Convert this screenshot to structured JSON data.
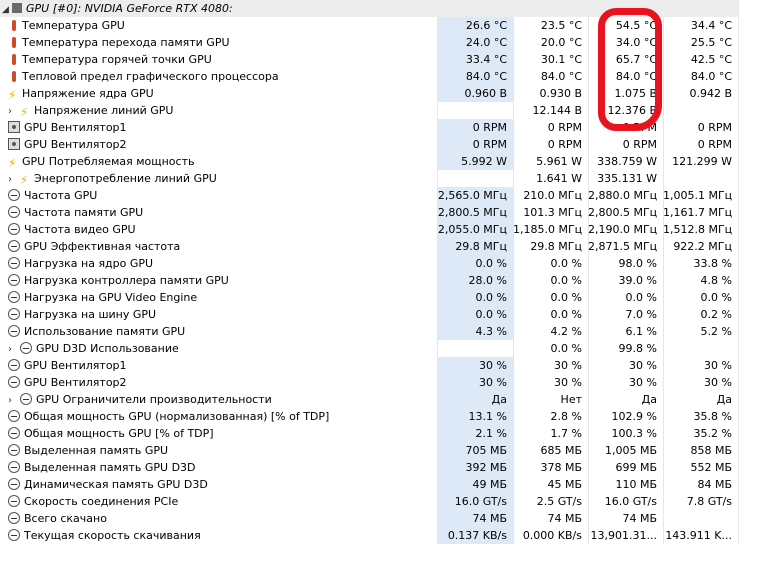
{
  "device_header": {
    "label": "GPU [#0]: NVIDIA GeForce RTX 4080:"
  },
  "sensors": [
    {
      "icon": "thermometer-icon",
      "label": "Температура GPU",
      "values": [
        "26.6 °C",
        "23.5 °C",
        "54.5 °C",
        "34.4 °C"
      ]
    },
    {
      "icon": "thermometer-icon",
      "label": "Температура перехода памяти GPU",
      "values": [
        "24.0 °C",
        "20.0 °C",
        "34.0 °C",
        "25.5 °C"
      ]
    },
    {
      "icon": "thermometer-icon",
      "label": "Температура горячей точки GPU",
      "values": [
        "33.4 °C",
        "30.1 °C",
        "65.7 °C",
        "42.5 °C"
      ]
    },
    {
      "icon": "thermometer-icon",
      "label": "Тепловой предел графического процессора",
      "values": [
        "84.0 °C",
        "84.0 °C",
        "84.0 °C",
        "84.0 °C"
      ]
    },
    {
      "icon": "lightning-icon",
      "label": "Напряжение ядра GPU",
      "values": [
        "0.960 В",
        "0.930 В",
        "1.075 В",
        "0.942 В"
      ]
    },
    {
      "icon": "lightning-icon",
      "label": "Напряжение линий GPU",
      "expandable": true,
      "values": [
        "",
        "12.144 В",
        "12.376 В",
        ""
      ]
    },
    {
      "icon": "fan-icon",
      "label": "GPU Вентилятор1",
      "values": [
        "0 RPM",
        "0 RPM",
        "0 RPM",
        "0 RPM"
      ]
    },
    {
      "icon": "fan-icon",
      "label": "GPU Вентилятор2",
      "values": [
        "0 RPM",
        "0 RPM",
        "0 RPM",
        "0 RPM"
      ]
    },
    {
      "icon": "lightning-icon",
      "label": "GPU Потребляемая мощность",
      "values": [
        "5.992 W",
        "5.961 W",
        "338.759 W",
        "121.299 W"
      ]
    },
    {
      "icon": "lightning-icon",
      "label": "Энергопотребление линий GPU",
      "expandable": true,
      "values": [
        "",
        "1.641 W",
        "335.131 W",
        ""
      ]
    },
    {
      "icon": "gauge-icon",
      "label": "Частота GPU",
      "values": [
        "2,565.0 МГц",
        "210.0 МГц",
        "2,880.0 МГц",
        "1,005.1 МГц"
      ]
    },
    {
      "icon": "gauge-icon",
      "label": "Частота памяти GPU",
      "values": [
        "2,800.5 МГц",
        "101.3 МГц",
        "2,800.5 МГц",
        "1,161.7 МГц"
      ]
    },
    {
      "icon": "gauge-icon",
      "label": "Частота видео GPU",
      "values": [
        "2,055.0 МГц",
        "1,185.0 МГц",
        "2,190.0 МГц",
        "1,512.8 МГц"
      ]
    },
    {
      "icon": "gauge-icon",
      "label": "GPU Эффективная частота",
      "values": [
        "29.8 МГц",
        "29.8 МГц",
        "2,871.5 МГц",
        "922.2 МГц"
      ]
    },
    {
      "icon": "gauge-icon",
      "label": "Нагрузка на ядро GPU",
      "values": [
        "0.0 %",
        "0.0 %",
        "98.0 %",
        "33.8 %"
      ]
    },
    {
      "icon": "gauge-icon",
      "label": "Нагрузка контроллера памяти GPU",
      "values": [
        "28.0 %",
        "0.0 %",
        "39.0 %",
        "4.8 %"
      ]
    },
    {
      "icon": "gauge-icon",
      "label": "Нагрузка на GPU Video Engine",
      "values": [
        "0.0 %",
        "0.0 %",
        "0.0 %",
        "0.0 %"
      ]
    },
    {
      "icon": "gauge-icon",
      "label": "Нагрузка на шину GPU",
      "values": [
        "0.0 %",
        "0.0 %",
        "7.0 %",
        "0.2 %"
      ]
    },
    {
      "icon": "gauge-icon",
      "label": "Использование памяти GPU",
      "values": [
        "4.3 %",
        "4.2 %",
        "6.1 %",
        "5.2 %"
      ]
    },
    {
      "icon": "gauge-icon",
      "label": "GPU D3D Использование",
      "expandable": true,
      "values": [
        "",
        "0.0 %",
        "99.8 %",
        ""
      ]
    },
    {
      "icon": "gauge-icon",
      "label": "GPU Вентилятор1",
      "values": [
        "30 %",
        "30 %",
        "30 %",
        "30 %"
      ]
    },
    {
      "icon": "gauge-icon",
      "label": "GPU Вентилятор2",
      "values": [
        "30 %",
        "30 %",
        "30 %",
        "30 %"
      ]
    },
    {
      "icon": "gauge-icon",
      "label": "GPU Ограничители производительности",
      "expandable": true,
      "values": [
        "Да",
        "Нет",
        "Да",
        "Да"
      ]
    },
    {
      "icon": "gauge-icon",
      "label": "Общая мощность GPU (нормализованная) [% of TDP]",
      "values": [
        "13.1 %",
        "2.8 %",
        "102.9 %",
        "35.8 %"
      ]
    },
    {
      "icon": "gauge-icon",
      "label": "Общая мощность GPU [% of TDP]",
      "values": [
        "2.1 %",
        "1.7 %",
        "100.3 %",
        "35.2 %"
      ]
    },
    {
      "icon": "gauge-icon",
      "label": "Выделенная память GPU",
      "values": [
        "705 МБ",
        "685 МБ",
        "1,005 МБ",
        "858 МБ"
      ]
    },
    {
      "icon": "gauge-icon",
      "label": "Выделенная память GPU D3D",
      "values": [
        "392 МБ",
        "378 МБ",
        "699 МБ",
        "552 МБ"
      ]
    },
    {
      "icon": "gauge-icon",
      "label": "Динамическая память GPU D3D",
      "values": [
        "49 МБ",
        "45 МБ",
        "110 МБ",
        "84 МБ"
      ]
    },
    {
      "icon": "gauge-icon",
      "label": "Скорость соединения PCIe",
      "values": [
        "16.0 GT/s",
        "2.5 GT/s",
        "16.0 GT/s",
        "7.8 GT/s"
      ]
    },
    {
      "icon": "gauge-icon",
      "label": "Всего скачано",
      "values": [
        "74 МБ",
        "74 МБ",
        "74 МБ",
        ""
      ]
    },
    {
      "icon": "gauge-icon",
      "label": "Текущая скорость скачивания",
      "values": [
        "0.137 KB/s",
        "0.000 KB/s",
        "13,901.31...",
        "143.911 K..."
      ]
    }
  ],
  "colors": {
    "highlight": "#dde9f7",
    "annotation": "#e8131f",
    "bolt": "#f2b400"
  }
}
